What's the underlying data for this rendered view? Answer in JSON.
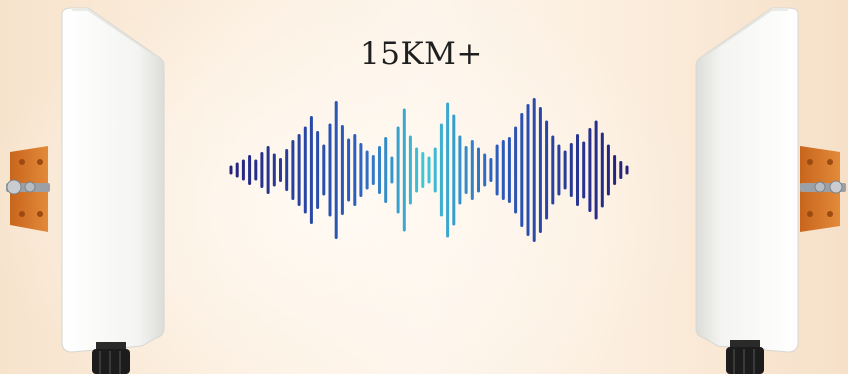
{
  "headline": {
    "distance_text": "15KM+"
  },
  "colors": {
    "wave_outer": "#25227a",
    "wave_mid": "#2c5fc0",
    "wave_center": "#3fcad6",
    "bracket": "#d9782a",
    "antenna_body": "#f7f7f5",
    "background": "#fcefe0"
  },
  "waveform": {
    "amplitudes": [
      6,
      10,
      14,
      20,
      14,
      24,
      32,
      22,
      16,
      28,
      40,
      48,
      58,
      72,
      52,
      34,
      62,
      92,
      60,
      42,
      48,
      36,
      26,
      20,
      32,
      44,
      18,
      58,
      82,
      46,
      30,
      24,
      18,
      30,
      62,
      90,
      74,
      46,
      32,
      40,
      30,
      22,
      16,
      34,
      40,
      44,
      58,
      76,
      88,
      96,
      84,
      66,
      46,
      34,
      26,
      36,
      48,
      38,
      56,
      66,
      50,
      34,
      20,
      12,
      6
    ]
  },
  "antennas": [
    {
      "id": "left",
      "facing": "right"
    },
    {
      "id": "right",
      "facing": "left"
    }
  ]
}
